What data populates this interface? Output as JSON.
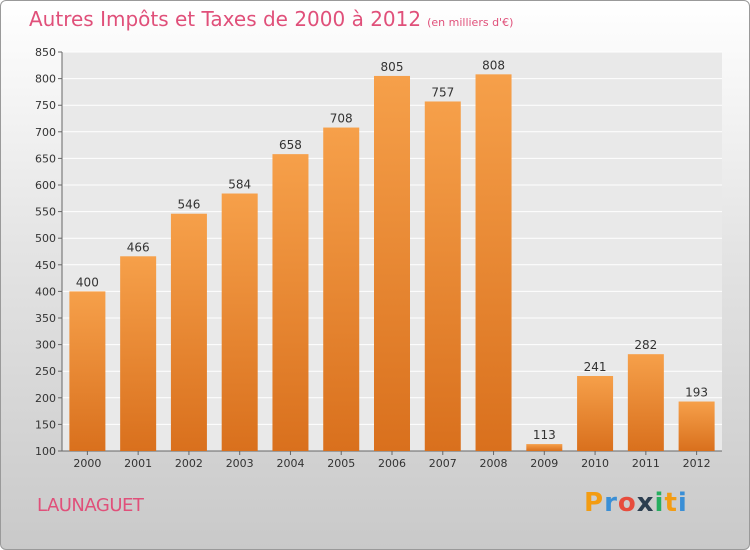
{
  "chart_data": {
    "type": "bar",
    "title": "Autres Impôts et Taxes de 2000 à 2012",
    "unit": "(en milliers d'€)",
    "categories": [
      "2000",
      "2001",
      "2002",
      "2003",
      "2004",
      "2005",
      "2006",
      "2007",
      "2008",
      "2009",
      "2010",
      "2011",
      "2012"
    ],
    "values": [
      400,
      466,
      546,
      584,
      658,
      708,
      805,
      757,
      808,
      113,
      241,
      282,
      193
    ],
    "ylim": [
      100,
      850
    ],
    "yticks": [
      100,
      150,
      200,
      250,
      300,
      350,
      400,
      450,
      500,
      550,
      600,
      650,
      700,
      750,
      800,
      850
    ],
    "grid": true,
    "bar_color": "#e8872e"
  },
  "place": "LAUNAGUET",
  "logo": {
    "letters": [
      "P",
      "r",
      "o",
      "x",
      "i",
      "t",
      "i"
    ],
    "colors": [
      "#f39c12",
      "#3a8fd6",
      "#e74c3c",
      "#2c3e50",
      "#27ae60",
      "#f39c12",
      "#3a8fd6"
    ]
  }
}
